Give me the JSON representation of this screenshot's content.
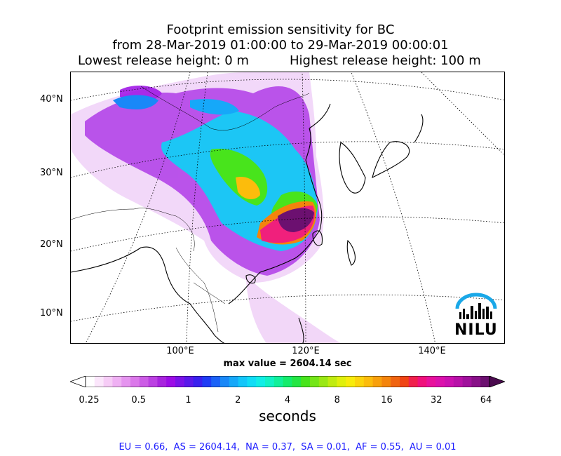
{
  "title": {
    "line1": "Footprint emission sensitivity for BC",
    "line2": "from 28-Mar-2019 01:00:00 to 29-Mar-2019 00:00:01",
    "lowest": "Lowest release height: 0 m",
    "highest": "Highest release height: 100 m"
  },
  "map": {
    "lat_labels": [
      "40°N",
      "30°N",
      "20°N",
      "10°N"
    ],
    "lon_labels": [
      "100°E",
      "120°E",
      "140°E"
    ],
    "max_value_text": "max value = 2604.14 sec",
    "logo_text": "NILU"
  },
  "colorbar": {
    "tick_labels": [
      "0.25",
      "0.5",
      "1",
      "2",
      "4",
      "8",
      "16",
      "32",
      "64"
    ],
    "units": "seconds",
    "colors": [
      "#ffffff",
      "#fbe6fb",
      "#f6ccf6",
      "#efb0f3",
      "#e594ef",
      "#db78ea",
      "#cc5ce6",
      "#bb40e2",
      "#a824de",
      "#9c0ce6",
      "#7a12e8",
      "#5a18ea",
      "#3a20ee",
      "#1f3cf5",
      "#1b62f7",
      "#1988f8",
      "#16a8f9",
      "#13c6fa",
      "#10ddf6",
      "#10eee6",
      "#10f2c4",
      "#10f09a",
      "#14ec6c",
      "#24e644",
      "#48e41c",
      "#74e618",
      "#9ae814",
      "#c0ec10",
      "#e0f00c",
      "#f8ec0c",
      "#fcd40c",
      "#fcbc0c",
      "#f8a00c",
      "#f4840c",
      "#f06410",
      "#f04414",
      "#f0204c",
      "#f0107c",
      "#e8109c",
      "#dc10ac",
      "#cc10b0",
      "#b810a8",
      "#a0109c",
      "#881088",
      "#6c1070"
    ]
  },
  "footer": {
    "text": "EU = 0.66,  AS = 2604.14,  NA = 0.37,  SA = 0.01,  AF = 0.55,  AU = 0.01"
  }
}
